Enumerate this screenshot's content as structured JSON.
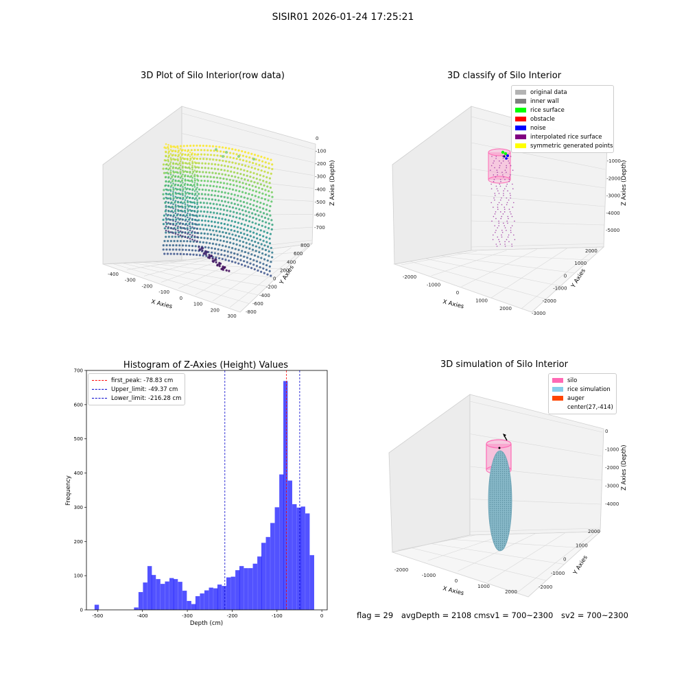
{
  "suptitle": "SISIR01 2026-01-24 17:25:21",
  "panel1": {
    "title": "3D Plot of Silo Interior(row data)",
    "xlabel": "X Axies",
    "ylabel": "Y Axies",
    "zlabel": "Z Axies (Depth)",
    "xticks": [
      "-400",
      "-300",
      "-200",
      "-100",
      "0",
      "100",
      "200",
      "300"
    ],
    "yticks": [
      "-800",
      "-600",
      "-400",
      "-200",
      "0",
      "200",
      "400",
      "600",
      "800"
    ],
    "zticks": [
      "0",
      "-100",
      "-200",
      "-300",
      "-400",
      "-500",
      "-600",
      "-700"
    ]
  },
  "panel2": {
    "title": "3D classify of Silo Interior",
    "xlabel": "X Axies",
    "ylabel": "Y Axies",
    "zlabel": "Z Axies (Depth)",
    "xticks": [
      "-2000",
      "-1000",
      "0",
      "1000",
      "2000"
    ],
    "yticks": [
      "-3000",
      "-2000",
      "-1000",
      "0",
      "1000",
      "2000"
    ],
    "zticks": [
      "0",
      "-1000",
      "-2000",
      "-3000",
      "-4000",
      "-5000"
    ],
    "legend": [
      {
        "label": "original data",
        "color": "#b3b3b3"
      },
      {
        "label": "inner wall",
        "color": "#808080"
      },
      {
        "label": "rice surface",
        "color": "#00ff00"
      },
      {
        "label": "obstacle",
        "color": "#ff0000"
      },
      {
        "label": "noise",
        "color": "#0000ff"
      },
      {
        "label": "interpolated rice surface",
        "color": "#800080"
      },
      {
        "label": "symmetric generated points",
        "color": "#ffff00"
      }
    ]
  },
  "panel4": {
    "title": "3D simulation of Silo Interior",
    "xlabel": "X Axies",
    "ylabel": "Y Axies",
    "zlabel": "Z Axies (Depth)",
    "xticks": [
      "-2000",
      "-1000",
      "0",
      "1000",
      "2000"
    ],
    "yticks": [
      "-2000",
      "-1000",
      "0",
      "1000",
      "2000"
    ],
    "zticks": [
      "0",
      "-1000",
      "-2000",
      "-3000",
      "-4000"
    ],
    "legend": [
      {
        "label": "silo",
        "color": "#ff69b4"
      },
      {
        "label": "rice simulation",
        "color": "#87ceeb"
      },
      {
        "label": "auger",
        "color": "#ff4500"
      },
      {
        "label": "center(27,-414)",
        "color": ""
      }
    ]
  },
  "status": {
    "flag": "flag = 29",
    "avg": "avgDepth = 2108 cmsv1 = 700~2300",
    "sv2": "sv2 = 700~2300"
  },
  "chart_data": [
    {
      "type": "histogram",
      "title": "Histogram of Z-Axies (Height) Values",
      "xlabel": "Depth (cm)",
      "ylabel": "Frequency",
      "xlim": [
        -525,
        12
      ],
      "ylim": [
        0,
        700
      ],
      "xticks": [
        -500,
        -400,
        -300,
        -200,
        -100,
        0
      ],
      "yticks": [
        0,
        100,
        200,
        300,
        400,
        500,
        600,
        700
      ],
      "bin_width": 9.8,
      "bins": [
        {
          "x": -502,
          "v": 15
        },
        {
          "x": -492,
          "v": 0
        },
        {
          "x": -482,
          "v": 0
        },
        {
          "x": -472,
          "v": 0
        },
        {
          "x": -463,
          "v": 0
        },
        {
          "x": -453,
          "v": 0
        },
        {
          "x": -443,
          "v": 0
        },
        {
          "x": -433,
          "v": 0
        },
        {
          "x": -424,
          "v": 0
        },
        {
          "x": -414,
          "v": 7
        },
        {
          "x": -404,
          "v": 52
        },
        {
          "x": -394,
          "v": 80
        },
        {
          "x": -384,
          "v": 128
        },
        {
          "x": -375,
          "v": 102
        },
        {
          "x": -365,
          "v": 90
        },
        {
          "x": -355,
          "v": 76
        },
        {
          "x": -345,
          "v": 83
        },
        {
          "x": -335,
          "v": 93
        },
        {
          "x": -326,
          "v": 90
        },
        {
          "x": -316,
          "v": 82
        },
        {
          "x": -306,
          "v": 56
        },
        {
          "x": -296,
          "v": 26
        },
        {
          "x": -286,
          "v": 17
        },
        {
          "x": -277,
          "v": 40
        },
        {
          "x": -267,
          "v": 48
        },
        {
          "x": -257,
          "v": 57
        },
        {
          "x": -247,
          "v": 65
        },
        {
          "x": -237,
          "v": 63
        },
        {
          "x": -228,
          "v": 74
        },
        {
          "x": -218,
          "v": 70
        },
        {
          "x": -208,
          "v": 95
        },
        {
          "x": -198,
          "v": 97
        },
        {
          "x": -188,
          "v": 116
        },
        {
          "x": -179,
          "v": 128
        },
        {
          "x": -169,
          "v": 122
        },
        {
          "x": -159,
          "v": 122
        },
        {
          "x": -149,
          "v": 135
        },
        {
          "x": -139,
          "v": 156
        },
        {
          "x": -130,
          "v": 196
        },
        {
          "x": -120,
          "v": 213
        },
        {
          "x": -110,
          "v": 254
        },
        {
          "x": -100,
          "v": 300
        },
        {
          "x": -90,
          "v": 396
        },
        {
          "x": -81,
          "v": 669
        },
        {
          "x": -71,
          "v": 378
        },
        {
          "x": -61,
          "v": 309
        },
        {
          "x": -51,
          "v": 299
        },
        {
          "x": -42,
          "v": 302
        },
        {
          "x": -32,
          "v": 282
        },
        {
          "x": -22,
          "v": 160
        }
      ],
      "bar_color": "#0000ff",
      "lines": [
        {
          "name": "first_peak: -78.83 cm",
          "x": -78.83,
          "color": "#ff0000"
        },
        {
          "name": "Upper_limit: -49.37 cm",
          "x": -49.37,
          "color": "#0000cd"
        },
        {
          "name": "Lower_limit: -216.28 cm",
          "x": -216.28,
          "color": "#0000cd"
        }
      ],
      "legend_position": "top-left"
    }
  ]
}
